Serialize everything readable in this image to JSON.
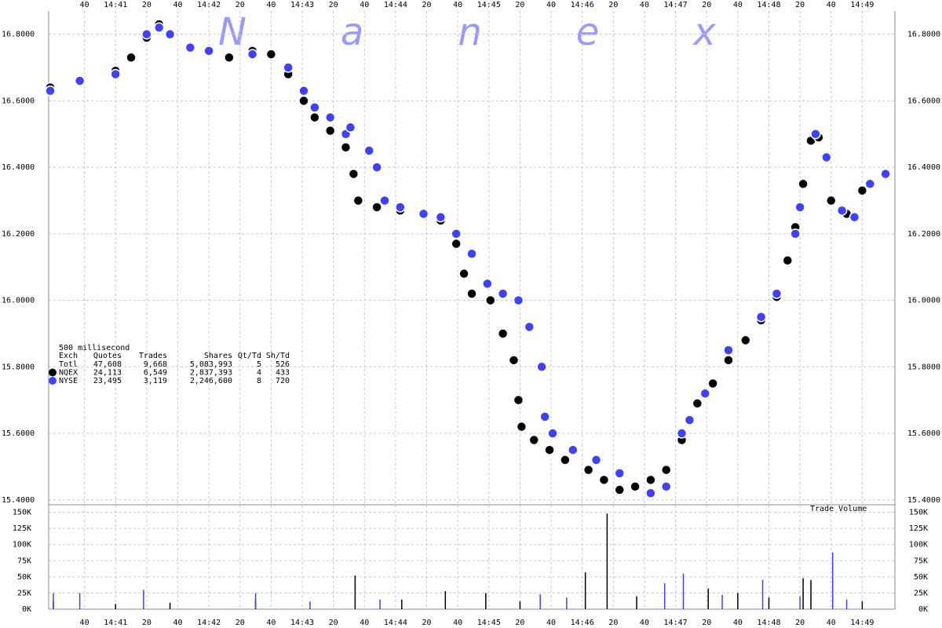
{
  "chart_data": [
    {
      "type": "scatter",
      "watermark": "Nanex",
      "xlim": [
        17,
        561
      ],
      "xticks": [
        {
          "value": 40,
          "label": "40"
        },
        {
          "value": 60,
          "label": "14:41"
        },
        {
          "value": 80,
          "label": "20"
        },
        {
          "value": 100,
          "label": "40"
        },
        {
          "value": 120,
          "label": "14:42"
        },
        {
          "value": 140,
          "label": "20"
        },
        {
          "value": 160,
          "label": "40"
        },
        {
          "value": 180,
          "label": "14:43"
        },
        {
          "value": 200,
          "label": "20"
        },
        {
          "value": 220,
          "label": "40"
        },
        {
          "value": 240,
          "label": "14:44"
        },
        {
          "value": 260,
          "label": "20"
        },
        {
          "value": 280,
          "label": "40"
        },
        {
          "value": 300,
          "label": "14:45"
        },
        {
          "value": 320,
          "label": "20"
        },
        {
          "value": 340,
          "label": "40"
        },
        {
          "value": 360,
          "label": "14:46"
        },
        {
          "value": 380,
          "label": "20"
        },
        {
          "value": 400,
          "label": "40"
        },
        {
          "value": 420,
          "label": "14:47"
        },
        {
          "value": 440,
          "label": "20"
        },
        {
          "value": 460,
          "label": "40"
        },
        {
          "value": 480,
          "label": "14:48"
        },
        {
          "value": 500,
          "label": "20"
        },
        {
          "value": 520,
          "label": "40"
        },
        {
          "value": 540,
          "label": "14:49"
        }
      ],
      "ylim": [
        15.39,
        16.87
      ],
      "yticks": [
        {
          "value": 15.4,
          "label": "15.4000"
        },
        {
          "value": 15.6,
          "label": "15.6000"
        },
        {
          "value": 15.8,
          "label": "15.8000"
        },
        {
          "value": 16.0,
          "label": "16.0000"
        },
        {
          "value": 16.2,
          "label": "16.2000"
        },
        {
          "value": 16.4,
          "label": "16.4000"
        },
        {
          "value": 16.6,
          "label": "16.6000"
        },
        {
          "value": 16.8,
          "label": "16.8000"
        }
      ],
      "series": [
        {
          "name": "NQEX",
          "color": "#000000",
          "x": [
            18,
            37,
            60,
            70,
            80,
            88,
            95,
            108,
            120,
            133,
            148,
            160,
            171,
            181,
            188,
            198,
            208,
            213,
            216,
            228,
            243,
            258,
            269,
            279,
            284,
            289,
            301,
            309,
            316,
            319,
            321,
            329,
            339,
            349,
            364,
            374,
            384,
            394,
            404,
            414,
            424,
            434,
            444,
            454,
            465,
            475,
            485,
            492,
            497,
            502,
            507,
            512,
            520,
            530,
            540,
            555
          ],
          "values": [
            16.64,
            16.66,
            16.69,
            16.73,
            16.79,
            16.83,
            16.8,
            16.76,
            16.75,
            16.73,
            16.75,
            16.74,
            16.68,
            16.6,
            16.55,
            16.51,
            16.46,
            16.38,
            16.3,
            16.28,
            16.27,
            16.26,
            16.24,
            16.17,
            16.08,
            16.02,
            16.0,
            15.9,
            15.82,
            15.7,
            15.62,
            15.58,
            15.55,
            15.52,
            15.49,
            15.46,
            15.43,
            15.44,
            15.46,
            15.49,
            15.58,
            15.69,
            15.75,
            15.82,
            15.88,
            15.94,
            16.01,
            16.12,
            16.22,
            16.35,
            16.48,
            16.49,
            16.3,
            16.26,
            16.33,
            16.38
          ]
        },
        {
          "name": "NYSE",
          "color": "#4040ff",
          "x": [
            18,
            37,
            60,
            80,
            88,
            95,
            108,
            120,
            148,
            171,
            181,
            188,
            198,
            208,
            211,
            223,
            228,
            233,
            243,
            258,
            269,
            279,
            289,
            299,
            309,
            319,
            326,
            334,
            336,
            341,
            354,
            369,
            384,
            404,
            414,
            424,
            429,
            439,
            454,
            475,
            485,
            497,
            500,
            510,
            517,
            527,
            535,
            545,
            555
          ],
          "values": [
            16.63,
            16.66,
            16.68,
            16.8,
            16.82,
            16.8,
            16.76,
            16.75,
            16.74,
            16.7,
            16.63,
            16.58,
            16.55,
            16.5,
            16.52,
            16.45,
            16.4,
            16.3,
            16.28,
            16.26,
            16.25,
            16.2,
            16.14,
            16.05,
            16.02,
            16.0,
            15.92,
            15.8,
            15.65,
            15.6,
            15.55,
            15.52,
            15.48,
            15.42,
            15.44,
            15.6,
            15.64,
            15.72,
            15.85,
            15.95,
            16.02,
            16.2,
            16.28,
            16.5,
            16.43,
            16.27,
            16.25,
            16.35,
            16.38
          ]
        }
      ],
      "stats": {
        "title": "500 millisecond",
        "header": [
          "Exch",
          "Quotes",
          "Trades",
          "Shares",
          "Qt/Td",
          "Sh/Td"
        ],
        "rows": [
          [
            "Totl",
            "47,608",
            "9,668",
            "5,083,993",
            "5",
            "526"
          ],
          [
            "NQEX",
            "24,113",
            "6,549",
            "2,837,393",
            "4",
            "433"
          ],
          [
            "NYSE",
            "23,495",
            "3,119",
            "2,246,600",
            "8",
            "720"
          ]
        ]
      }
    },
    {
      "type": "bar",
      "title": "Trade Volume",
      "ylim": [
        0,
        158000
      ],
      "yticks": [
        {
          "value": 0,
          "label": "0K"
        },
        {
          "value": 25000,
          "label": "25K"
        },
        {
          "value": 50000,
          "label": "50K"
        },
        {
          "value": 75000,
          "label": "75K"
        },
        {
          "value": 100000,
          "label": "100K"
        },
        {
          "value": 125000,
          "label": "125K"
        },
        {
          "value": 150000,
          "label": "150K"
        }
      ],
      "series": [
        {
          "color": "#000000",
          "x": [
            20,
            60,
            95,
            150,
            214,
            244,
            272,
            298,
            320,
            362,
            376,
            395,
            441,
            460,
            480,
            502,
            507,
            540
          ],
          "values": [
            12000,
            8000,
            10000,
            15000,
            52000,
            15000,
            28000,
            25000,
            12000,
            57000,
            148000,
            20000,
            32000,
            25000,
            18000,
            48000,
            45000,
            12000
          ]
        },
        {
          "color": "#4040ff",
          "x": [
            20,
            37,
            78,
            150,
            185,
            230,
            333,
            350,
            413,
            425,
            450,
            476,
            500,
            521,
            530
          ],
          "values": [
            25000,
            25000,
            30000,
            25000,
            12000,
            15000,
            23000,
            18000,
            40000,
            55000,
            22000,
            45000,
            20000,
            88000,
            15000
          ]
        }
      ]
    }
  ]
}
